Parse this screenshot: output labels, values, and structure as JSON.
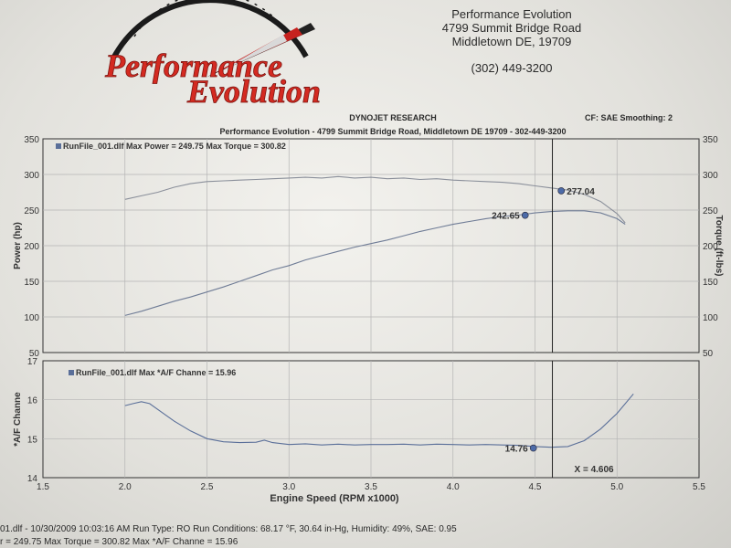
{
  "header": {
    "company": "Performance Evolution",
    "street": "4799 Summit Bridge Road",
    "city": "Middletown DE, 19709",
    "phone": "(302) 449-3200",
    "logo_line1": "Performance",
    "logo_line2": "Evolution",
    "report_title": "DYNOJET RESEARCH",
    "report_subtitle": "Performance Evolution - 4799 Summit Bridge Road, Middletown DE 19709 - 302-449-3200",
    "correction": "CF: SAE  Smoothing: 2"
  },
  "footer": {
    "line1": "01.dlf - 10/30/2009 10:03:16 AM  Run Type: RO  Run Conditions: 68.17 °F, 30.64 in-Hg,  Humidity: 49%, SAE: 0.95",
    "line2": "r = 249.75  Max Torque = 300.82  Max *A/F Channe = 15.96"
  },
  "chart_data": [
    {
      "type": "line",
      "legend": "RunFile_001.dlf Max Power = 249.75   Max Torque = 300.82",
      "xlim": [
        1.5,
        5.5
      ],
      "ylim_left": [
        50,
        350
      ],
      "ylim_right": [
        50,
        350
      ],
      "ylabel": "Power (hp)",
      "ylabel_right": "Torque (ft-lbs)",
      "yticks": [
        "350",
        "300",
        "250",
        "200",
        "150",
        "100",
        "50"
      ],
      "yticks_right": [
        "350",
        "300",
        "250",
        "200",
        "150",
        "100",
        "50"
      ],
      "grid": true,
      "series": [
        {
          "axis": "right",
          "color": "#8a8f9a",
          "points": [
            [
              2.0,
              265
            ],
            [
              2.1,
              270
            ],
            [
              2.2,
              275
            ],
            [
              2.3,
              282
            ],
            [
              2.4,
              287
            ],
            [
              2.5,
              290
            ],
            [
              2.6,
              291
            ],
            [
              2.7,
              292
            ],
            [
              2.8,
              293
            ],
            [
              2.9,
              294
            ],
            [
              3.0,
              295
            ],
            [
              3.1,
              296
            ],
            [
              3.2,
              295
            ],
            [
              3.3,
              297
            ],
            [
              3.4,
              295
            ],
            [
              3.5,
              296
            ],
            [
              3.6,
              294
            ],
            [
              3.7,
              295
            ],
            [
              3.8,
              293
            ],
            [
              3.9,
              294
            ],
            [
              4.0,
              292
            ],
            [
              4.1,
              291
            ],
            [
              4.2,
              290
            ],
            [
              4.3,
              289
            ],
            [
              4.4,
              287
            ],
            [
              4.5,
              284
            ],
            [
              4.6,
              281
            ],
            [
              4.7,
              278
            ],
            [
              4.8,
              272
            ],
            [
              4.9,
              262
            ],
            [
              5.0,
              245
            ],
            [
              5.05,
              232
            ]
          ]
        },
        {
          "axis": "left",
          "color": "#6f7c96",
          "points": [
            [
              2.0,
              102
            ],
            [
              2.1,
              108
            ],
            [
              2.2,
              115
            ],
            [
              2.3,
              122
            ],
            [
              2.4,
              128
            ],
            [
              2.5,
              135
            ],
            [
              2.6,
              142
            ],
            [
              2.7,
              150
            ],
            [
              2.8,
              158
            ],
            [
              2.9,
              166
            ],
            [
              3.0,
              172
            ],
            [
              3.1,
              180
            ],
            [
              3.2,
              186
            ],
            [
              3.3,
              192
            ],
            [
              3.4,
              198
            ],
            [
              3.5,
              203
            ],
            [
              3.6,
              208
            ],
            [
              3.7,
              214
            ],
            [
              3.8,
              220
            ],
            [
              3.9,
              225
            ],
            [
              4.0,
              230
            ],
            [
              4.1,
              234
            ],
            [
              4.2,
              238
            ],
            [
              4.3,
              241
            ],
            [
              4.4,
              243
            ],
            [
              4.5,
              246
            ],
            [
              4.6,
              248
            ],
            [
              4.7,
              249
            ],
            [
              4.8,
              249
            ],
            [
              4.9,
              246
            ],
            [
              5.0,
              238
            ],
            [
              5.05,
              230
            ]
          ]
        }
      ],
      "markers": [
        {
          "x": 4.66,
          "y": 277.04,
          "label": "277.04",
          "axis": "right",
          "label_side": "right"
        },
        {
          "x": 4.44,
          "y": 242.65,
          "label": "242.65",
          "axis": "left",
          "label_side": "left"
        }
      ],
      "cursor_x": 4.606
    },
    {
      "type": "line",
      "legend": "RunFile_001.dlf Max *A/F Channe = 15.96",
      "xlim": [
        1.5,
        5.5
      ],
      "ylim": [
        14,
        17
      ],
      "ylabel": "*A/F Channe",
      "xlabel": "Engine Speed (RPM x1000)",
      "yticks": [
        "17",
        "16",
        "15",
        "14"
      ],
      "xticks": [
        "1.5",
        "2.0",
        "2.5",
        "3.0",
        "3.5",
        "4.0",
        "4.5",
        "5.0",
        "5.5"
      ],
      "grid": true,
      "series": [
        {
          "color": "#5a6f99",
          "points": [
            [
              2.0,
              15.85
            ],
            [
              2.05,
              15.9
            ],
            [
              2.1,
              15.95
            ],
            [
              2.15,
              15.9
            ],
            [
              2.2,
              15.75
            ],
            [
              2.3,
              15.45
            ],
            [
              2.4,
              15.2
            ],
            [
              2.5,
              15.0
            ],
            [
              2.6,
              14.92
            ],
            [
              2.7,
              14.9
            ],
            [
              2.8,
              14.91
            ],
            [
              2.85,
              14.96
            ],
            [
              2.9,
              14.9
            ],
            [
              3.0,
              14.85
            ],
            [
              3.1,
              14.87
            ],
            [
              3.2,
              14.84
            ],
            [
              3.3,
              14.86
            ],
            [
              3.4,
              14.84
            ],
            [
              3.5,
              14.85
            ],
            [
              3.6,
              14.85
            ],
            [
              3.7,
              14.86
            ],
            [
              3.8,
              14.84
            ],
            [
              3.9,
              14.86
            ],
            [
              4.0,
              14.85
            ],
            [
              4.1,
              14.84
            ],
            [
              4.2,
              14.85
            ],
            [
              4.3,
              14.84
            ],
            [
              4.4,
              14.83
            ],
            [
              4.5,
              14.8
            ],
            [
              4.6,
              14.78
            ],
            [
              4.7,
              14.8
            ],
            [
              4.8,
              14.95
            ],
            [
              4.9,
              15.25
            ],
            [
              5.0,
              15.65
            ],
            [
              5.1,
              16.15
            ]
          ]
        }
      ],
      "markers": [
        {
          "x": 4.49,
          "y": 14.76,
          "label": "14.76",
          "label_side": "left"
        }
      ],
      "cursor_x": 4.606,
      "cursor_label": "X = 4.606"
    }
  ]
}
